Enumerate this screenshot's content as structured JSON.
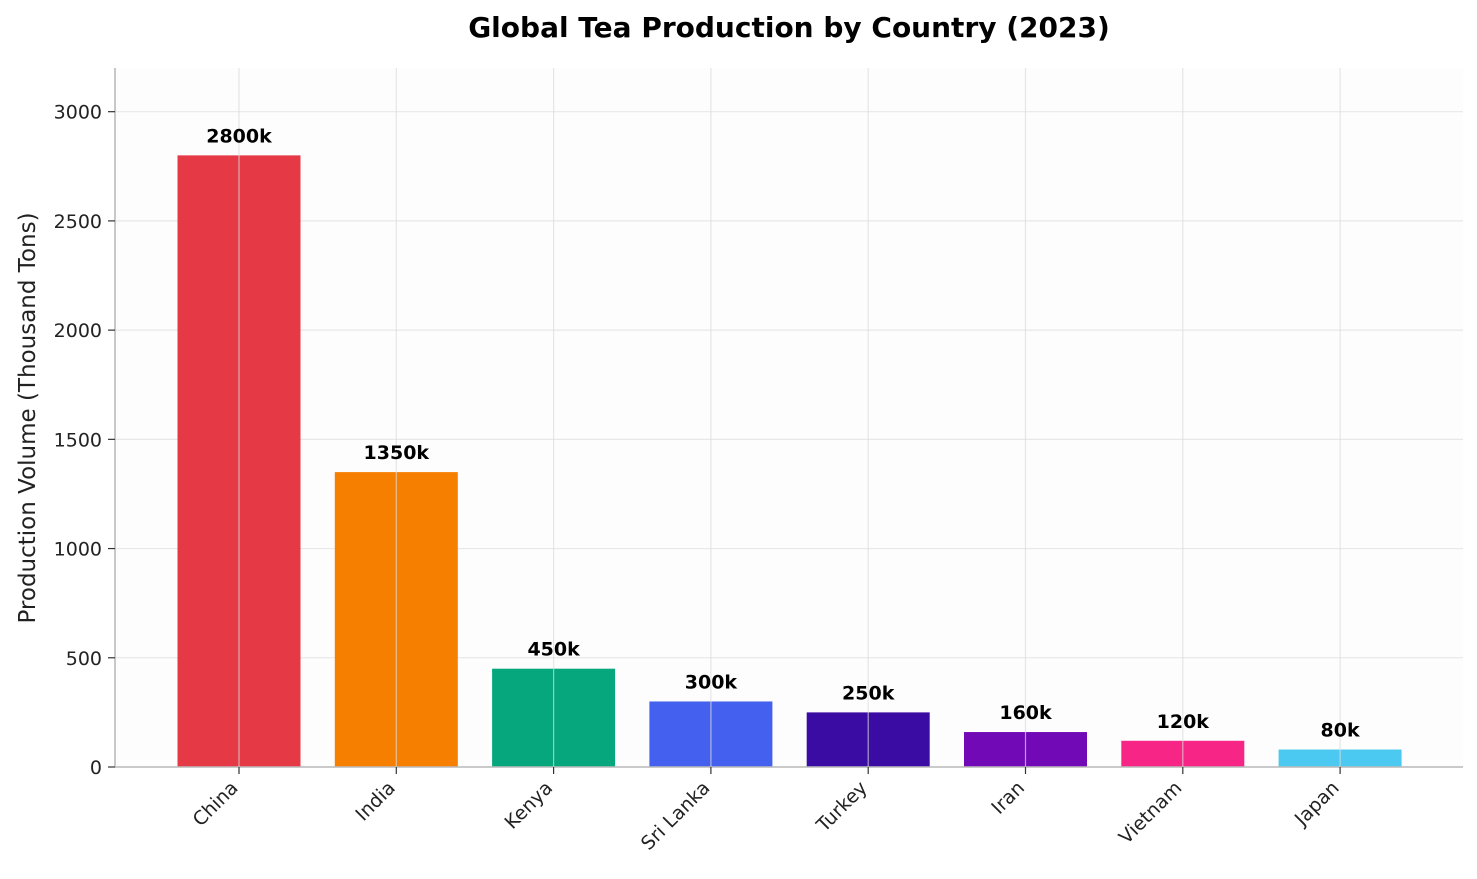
{
  "chart_data": {
    "type": "bar",
    "title": "Global Tea Production by Country (2023)",
    "xlabel": "",
    "ylabel": "Production Volume (Thousand Tons)",
    "categories": [
      "China",
      "India",
      "Kenya",
      "Sri Lanka",
      "Turkey",
      "Iran",
      "Vietnam",
      "Japan"
    ],
    "values": [
      2800,
      1350,
      450,
      300,
      250,
      160,
      120,
      80
    ],
    "value_labels": [
      "2800k",
      "1350k",
      "450k",
      "300k",
      "250k",
      "160k",
      "120k",
      "80k"
    ],
    "colors": [
      "#e63946",
      "#f77f00",
      "#06a77d",
      "#4361ee",
      "#3a0ca3",
      "#7209b7",
      "#f72585",
      "#4cc9f0"
    ],
    "ylim": [
      0,
      3200
    ],
    "yticks": [
      0,
      500,
      1000,
      1500,
      2000,
      2500,
      3000
    ],
    "grid": true,
    "legend": "none"
  }
}
